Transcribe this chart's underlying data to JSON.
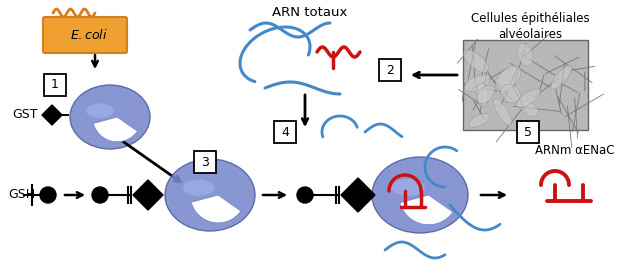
{
  "ecoli_box_color": "#f0a030",
  "ecoli_border_color": "#d08020",
  "ecoli_squiggle_color": "#e07818",
  "protein_color": "#7888cc",
  "protein_edge_color": "#5060a0",
  "rna_blue_color": "#4488cc",
  "rna_red_color": "#cc1111",
  "gst_label": "GST",
  "gsh_label": "GSH",
  "arnm_label": "ARNm αENaC",
  "arn_totaux_label": "ARN totaux",
  "cellules_label": "Cellules épithéliales\nalvéolaires",
  "background": "#ffffff"
}
